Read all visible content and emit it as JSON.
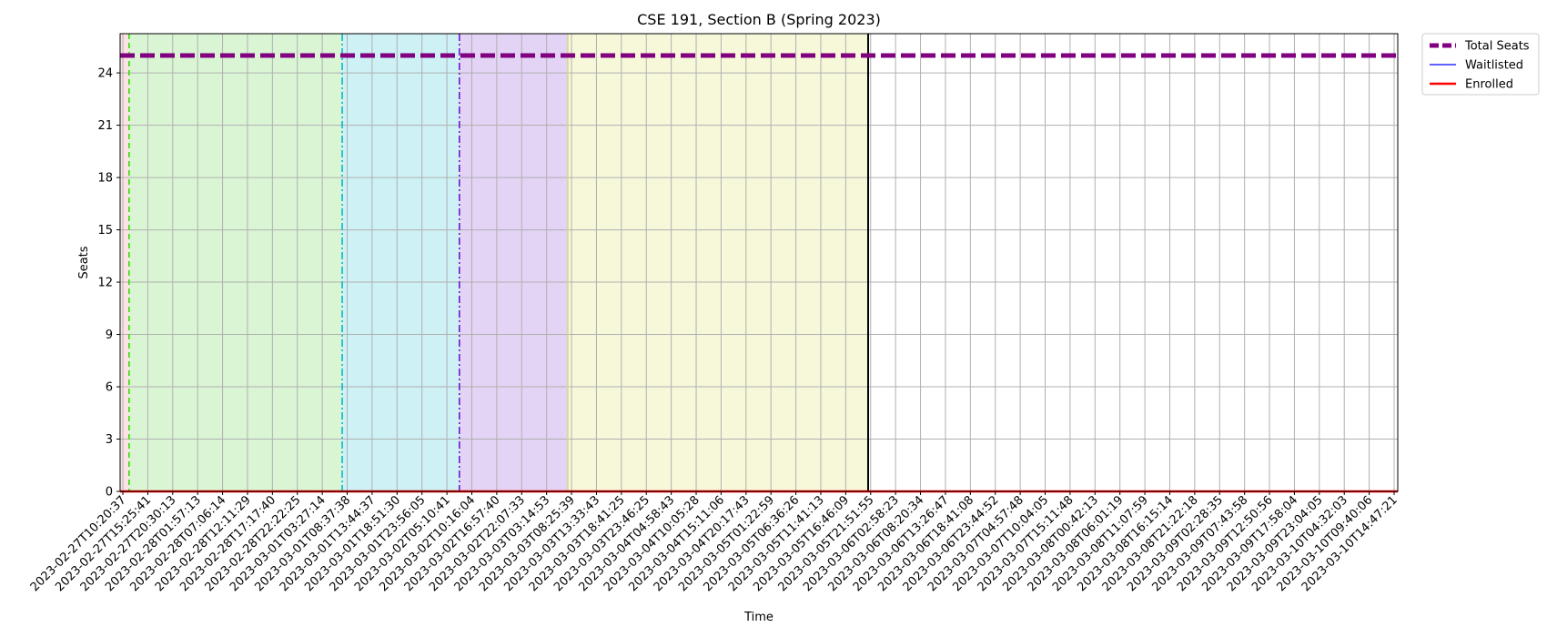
{
  "chart_data": {
    "type": "line",
    "title": "CSE 191, Section B (Spring 2023)",
    "xlabel": "Time",
    "ylabel": "Seats",
    "ylim": [
      0,
      26.25
    ],
    "yticks": [
      0,
      3,
      6,
      9,
      12,
      15,
      18,
      21,
      24
    ],
    "grid": true,
    "legend_placement": "outside-top-right",
    "x": [
      "2023-02-27T10:20:37",
      "2023-02-27T15:25:41",
      "2023-02-27T20:30:13",
      "2023-02-28T01:57:13",
      "2023-02-28T07:06:14",
      "2023-02-28T12:11:29",
      "2023-02-28T17:17:40",
      "2023-02-28T22:22:25",
      "2023-03-01T03:27:14",
      "2023-03-01T08:37:38",
      "2023-03-01T13:44:37",
      "2023-03-01T18:51:30",
      "2023-03-01T23:56:05",
      "2023-03-02T05:10:41",
      "2023-03-02T10:16:04",
      "2023-03-02T16:57:40",
      "2023-03-02T22:07:33",
      "2023-03-03T03:14:53",
      "2023-03-03T08:25:39",
      "2023-03-03T13:33:43",
      "2023-03-03T18:41:25",
      "2023-03-03T23:46:25",
      "2023-03-04T04:58:43",
      "2023-03-04T10:05:28",
      "2023-03-04T15:11:06",
      "2023-03-04T20:17:43",
      "2023-03-05T01:22:59",
      "2023-03-05T06:36:26",
      "2023-03-05T11:41:13",
      "2023-03-05T16:46:09",
      "2023-03-05T21:51:55",
      "2023-03-06T02:58:23",
      "2023-03-06T08:20:34",
      "2023-03-06T13:26:47",
      "2023-03-06T18:41:08",
      "2023-03-06T23:44:52",
      "2023-03-07T04:57:48",
      "2023-03-07T10:04:05",
      "2023-03-07T15:11:48",
      "2023-03-08T00:42:13",
      "2023-03-08T06:01:19",
      "2023-03-08T11:07:59",
      "2023-03-08T16:15:14",
      "2023-03-08T21:22:18",
      "2023-03-09T02:28:35",
      "2023-03-09T07:43:58",
      "2023-03-09T12:50:56",
      "2023-03-09T17:58:04",
      "2023-03-09T23:04:05",
      "2023-03-10T04:32:03",
      "2023-03-10T09:40:06",
      "2023-03-10T14:47:21"
    ],
    "series": [
      {
        "name": "Total Seats",
        "constant": 25,
        "color": "#800080",
        "style": "dashed",
        "width": "thick"
      },
      {
        "name": "Waitlisted",
        "constant": 0,
        "color": "#0000ff",
        "style": "solid",
        "width": "thin"
      },
      {
        "name": "Enrolled",
        "constant": 0,
        "color": "#ff0000",
        "style": "solid",
        "width": "medium"
      }
    ],
    "shaded_regions": [
      {
        "from_index": 0,
        "to_index": 0.25,
        "color": "#fbe3e3"
      },
      {
        "from_index": 0.25,
        "to_index": 8.8,
        "color": "#daf5d4"
      },
      {
        "from_index": 8.8,
        "to_index": 13.5,
        "color": "#cdf1f5"
      },
      {
        "from_index": 13.5,
        "to_index": 17.85,
        "color": "#e3d3f5"
      },
      {
        "from_index": 17.85,
        "to_index": 29.9,
        "color": "#f7f8d9"
      }
    ],
    "vertical_lines": [
      {
        "at_index": 0.25,
        "color": "#33dd00",
        "style": "dashed"
      },
      {
        "at_index": 8.8,
        "color": "#00bbcc",
        "style": "dashdot"
      },
      {
        "at_index": 13.5,
        "color": "#6a1bcc",
        "style": "dashdot"
      },
      {
        "at_index": 17.85,
        "color": "#d8d890",
        "style": "solid"
      },
      {
        "at_index": 29.9,
        "color": "#000000",
        "style": "solid"
      }
    ]
  }
}
